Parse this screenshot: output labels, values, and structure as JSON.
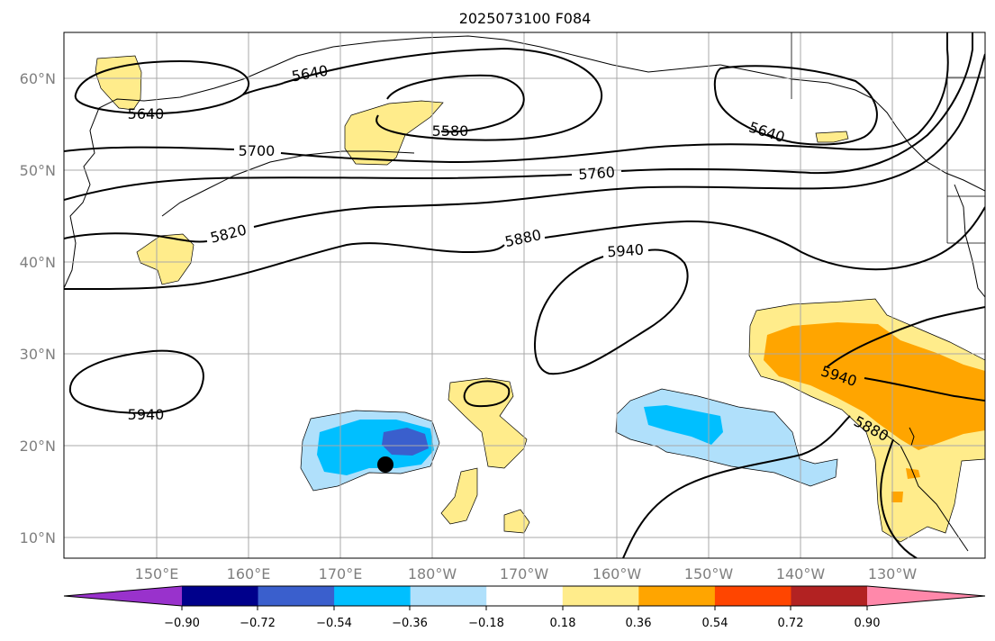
{
  "title": "2025073100 F084",
  "map": {
    "lat_ticks": [
      "60°N",
      "50°N",
      "40°N",
      "30°N",
      "20°N",
      "10°N"
    ],
    "lon_ticks": [
      "150°E",
      "160°E",
      "170°E",
      "180°W",
      "170°W",
      "160°W",
      "150°W",
      "140°W",
      "130°W"
    ],
    "contour_labels": [
      "5640",
      "5640",
      "5580",
      "5640",
      "5700",
      "5760",
      "5820",
      "5880",
      "5940",
      "5940",
      "5940",
      "5880"
    ],
    "grid": true,
    "marker": "black-dot"
  },
  "colorbar": {
    "ticks": [
      "−0.90",
      "−0.72",
      "−0.54",
      "−0.36",
      "−0.18",
      "0.18",
      "0.36",
      "0.54",
      "0.72",
      "0.90"
    ],
    "colors": [
      "#9932cc",
      "#00008b",
      "#3a5fcd",
      "#00bfff",
      "#b0e0fb",
      "#ffffff",
      "#ffec8b",
      "#ffa500",
      "#ff4500",
      "#b22222",
      "#ff88aa"
    ]
  }
}
